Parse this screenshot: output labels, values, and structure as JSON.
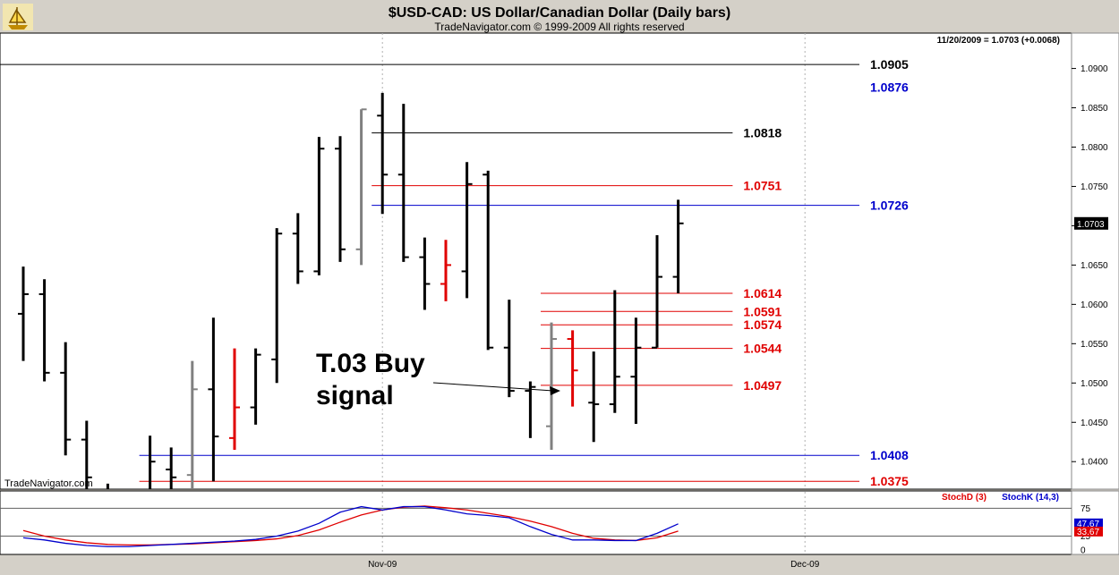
{
  "header": {
    "title": "$USD-CAD:  US Dollar/Canadian Dollar  (Daily bars)",
    "subtitle": "TradeNavigator.com © 1999-2009 All rights reserved",
    "last_quote": "11/20/2009 = 1.0703 (+0.0068)",
    "watermark": "TradeNavigator.com",
    "logo_icon": "sailing-ship-icon"
  },
  "annotation": {
    "line1": "T.03 Buy",
    "line2": "signal"
  },
  "colors": {
    "bar_black": "#000000",
    "bar_gray": "#808080",
    "bar_red": "#e00000",
    "level_red": "#e00000",
    "level_blue": "#0000cc",
    "stoch_d": "#e00000",
    "stoch_k": "#0000cc"
  },
  "chart_data": {
    "type": "ohlc",
    "title": "$USD-CAD:  US Dollar/Canadian Dollar  (Daily bars)",
    "ylim": [
      1.0365,
      1.0945
    ],
    "y_ticks": [
      "1.0900",
      "1.0850",
      "1.0800",
      "1.0750",
      "1.0700",
      "1.0650",
      "1.0600",
      "1.0550",
      "1.0500",
      "1.0450",
      "1.0400"
    ],
    "x_tick_labels": [
      {
        "label": "Nov-09",
        "index": 17
      },
      {
        "label": "Dec-09",
        "index": 37
      }
    ],
    "current_price_label": "1.0703",
    "bars": [
      {
        "h": 1.0648,
        "l": 1.0528,
        "o": 1.0588,
        "c": 1.0613,
        "color": "black"
      },
      {
        "h": 1.0632,
        "l": 1.0502,
        "o": 1.0613,
        "c": 1.0513,
        "color": "black"
      },
      {
        "h": 1.0552,
        "l": 1.0408,
        "o": 1.0513,
        "c": 1.0428,
        "color": "black"
      },
      {
        "h": 1.0452,
        "l": 1.033,
        "o": 1.0428,
        "c": 1.038,
        "color": "black"
      },
      {
        "h": 1.0372,
        "l": 1.031,
        "o": 1.0358,
        "c": 1.034,
        "color": "black"
      },
      {
        "h": 1.0365,
        "l": 1.032,
        "o": 1.033,
        "c": 1.0355,
        "color": "gray"
      },
      {
        "h": 1.0433,
        "l": 1.033,
        "o": 1.036,
        "c": 1.04,
        "color": "black"
      },
      {
        "h": 1.0418,
        "l": 1.034,
        "o": 1.039,
        "c": 1.038,
        "color": "black"
      },
      {
        "h": 1.0528,
        "l": 1.0345,
        "o": 1.0383,
        "c": 1.0492,
        "color": "gray"
      },
      {
        "h": 1.0583,
        "l": 1.0375,
        "o": 1.0492,
        "c": 1.0432,
        "color": "black"
      },
      {
        "h": 1.0544,
        "l": 1.0415,
        "o": 1.043,
        "c": 1.0469,
        "color": "red"
      },
      {
        "h": 1.0544,
        "l": 1.0447,
        "o": 1.0469,
        "c": 1.0536,
        "color": "black"
      },
      {
        "h": 1.0697,
        "l": 1.05,
        "o": 1.053,
        "c": 1.069,
        "color": "black"
      },
      {
        "h": 1.0716,
        "l": 1.0626,
        "o": 1.069,
        "c": 1.0642,
        "color": "black"
      },
      {
        "h": 1.0813,
        "l": 1.0637,
        "o": 1.0642,
        "c": 1.0798,
        "color": "black"
      },
      {
        "h": 1.0814,
        "l": 1.0654,
        "o": 1.0798,
        "c": 1.067,
        "color": "black"
      },
      {
        "h": 1.0848,
        "l": 1.065,
        "o": 1.067,
        "c": 1.0848,
        "color": "gray"
      },
      {
        "h": 1.0869,
        "l": 1.0715,
        "o": 1.084,
        "c": 1.0765,
        "color": "black"
      },
      {
        "h": 1.0855,
        "l": 1.0654,
        "o": 1.0765,
        "c": 1.066,
        "color": "black"
      },
      {
        "h": 1.0685,
        "l": 1.0593,
        "o": 1.066,
        "c": 1.0626,
        "color": "black"
      },
      {
        "h": 1.0682,
        "l": 1.0604,
        "o": 1.0626,
        "c": 1.065,
        "color": "red"
      },
      {
        "h": 1.0781,
        "l": 1.0608,
        "o": 1.0642,
        "c": 1.0753,
        "color": "black"
      },
      {
        "h": 1.077,
        "l": 1.0542,
        "o": 1.0765,
        "c": 1.0545,
        "color": "black"
      },
      {
        "h": 1.0606,
        "l": 1.0482,
        "o": 1.0545,
        "c": 1.049,
        "color": "black"
      },
      {
        "h": 1.0502,
        "l": 1.043,
        "o": 1.049,
        "c": 1.0495,
        "color": "black"
      },
      {
        "h": 1.0577,
        "l": 1.0415,
        "o": 1.0445,
        "c": 1.0556,
        "color": "gray"
      },
      {
        "h": 1.0567,
        "l": 1.047,
        "o": 1.0556,
        "c": 1.0516,
        "color": "red"
      },
      {
        "h": 1.054,
        "l": 1.0425,
        "o": 1.0475,
        "c": 1.0473,
        "color": "black"
      },
      {
        "h": 1.0618,
        "l": 1.0462,
        "o": 1.0473,
        "c": 1.0508,
        "color": "black"
      },
      {
        "h": 1.0583,
        "l": 1.0448,
        "o": 1.0508,
        "c": 1.0545,
        "color": "black"
      },
      {
        "h": 1.0688,
        "l": 1.0545,
        "o": 1.0545,
        "c": 1.0635,
        "color": "black"
      },
      {
        "h": 1.0733,
        "l": 1.0614,
        "o": 1.0635,
        "c": 1.0703,
        "color": "black"
      }
    ],
    "levels": [
      {
        "value": 1.0905,
        "label": "1.0905",
        "color": "black",
        "from": 0,
        "to": 40
      },
      {
        "value": 1.0818,
        "label": "1.0818",
        "color": "black",
        "from": 17,
        "to": 34
      },
      {
        "value": 1.0751,
        "label": "1.0751",
        "color": "red",
        "from": 17,
        "to": 34
      },
      {
        "value": 1.0726,
        "label": "1.0726",
        "color": "blue",
        "from": 17,
        "to": 40
      },
      {
        "value": 1.0614,
        "label": "1.0614",
        "color": "red",
        "from": 25,
        "to": 34
      },
      {
        "value": 1.0591,
        "label": "1.0591",
        "color": "red",
        "from": 25,
        "to": 34
      },
      {
        "value": 1.0574,
        "label": "1.0574",
        "color": "red",
        "from": 25,
        "to": 34
      },
      {
        "value": 1.0544,
        "label": "1.0544",
        "color": "red",
        "from": 25,
        "to": 34
      },
      {
        "value": 1.0497,
        "label": "1.0497",
        "color": "red",
        "from": 25,
        "to": 34
      },
      {
        "value": 1.0408,
        "label": "1.0408",
        "color": "blue",
        "from": 6,
        "to": 40
      },
      {
        "value": 1.0375,
        "label": "1.0375",
        "color": "red",
        "from": 6,
        "to": 40
      }
    ],
    "floating_labels": [
      {
        "value": 1.0876,
        "label": "1.0876",
        "color": "blue"
      }
    ],
    "stochastic": {
      "ylim": [
        0,
        100
      ],
      "ticks": [
        "75",
        "25",
        "0"
      ],
      "legend": [
        {
          "name": "StochD (3)",
          "color": "red"
        },
        {
          "name": "StochK (14,3)",
          "color": "blue"
        }
      ],
      "k": [
        22,
        18,
        12,
        8,
        6,
        6,
        8,
        10,
        12,
        14,
        16,
        19,
        25,
        34,
        48,
        68,
        78,
        72,
        78,
        78,
        72,
        65,
        62,
        58,
        42,
        28,
        18,
        18,
        17,
        17,
        30,
        47
      ],
      "d": [
        35,
        25,
        18,
        13,
        10,
        9,
        9,
        10,
        11,
        13,
        15,
        17,
        20,
        26,
        36,
        50,
        63,
        72,
        77,
        79,
        76,
        72,
        66,
        60,
        52,
        42,
        30,
        21,
        18,
        17,
        22,
        34
      ],
      "k_value_label": "47.67",
      "d_value_label": "33.67"
    }
  }
}
